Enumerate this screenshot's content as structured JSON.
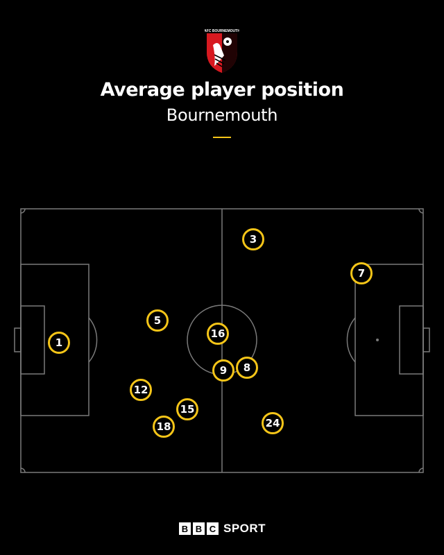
{
  "crest": {
    "text": "AFC BOURNEMOUTH"
  },
  "header": {
    "title": "Average player position",
    "subtitle": "Bournemouth"
  },
  "colors": {
    "background": "#000000",
    "pitch_lines": "#7a7a7a",
    "marker": "#f5c518",
    "text": "#ffffff"
  },
  "players": [
    {
      "number": "1"
    },
    {
      "number": "3"
    },
    {
      "number": "5"
    },
    {
      "number": "7"
    },
    {
      "number": "16"
    },
    {
      "number": "9"
    },
    {
      "number": "8"
    },
    {
      "number": "12"
    },
    {
      "number": "15"
    },
    {
      "number": "18"
    },
    {
      "number": "24"
    }
  ],
  "brand": {
    "letters": [
      "B",
      "B",
      "C"
    ],
    "sport": "SPORT"
  }
}
